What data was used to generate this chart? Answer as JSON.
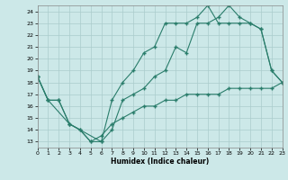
{
  "title": "",
  "xlabel": "Humidex (Indice chaleur)",
  "xlim": [
    0,
    23
  ],
  "ylim": [
    12.5,
    24.5
  ],
  "xticks": [
    0,
    1,
    2,
    3,
    4,
    5,
    6,
    7,
    8,
    9,
    10,
    11,
    12,
    13,
    14,
    15,
    16,
    17,
    18,
    19,
    20,
    21,
    22,
    23
  ],
  "yticks": [
    13,
    14,
    15,
    16,
    17,
    18,
    19,
    20,
    21,
    22,
    23,
    24
  ],
  "line_color": "#2a7d6b",
  "bg_color": "#cce8e8",
  "grid_color": "#aacccc",
  "line1_x": [
    0,
    1,
    2,
    3,
    4,
    5,
    6,
    7,
    8,
    9,
    10,
    11,
    12,
    13,
    14,
    15,
    16,
    17,
    18,
    19,
    20,
    21,
    22,
    23
  ],
  "line1_y": [
    18.5,
    16.5,
    16.5,
    14.5,
    14.0,
    13.0,
    13.0,
    14.0,
    16.5,
    17.0,
    17.5,
    18.5,
    19.0,
    21.0,
    20.5,
    23.0,
    23.0,
    23.5,
    24.5,
    23.5,
    23.0,
    22.5,
    19.0,
    18.0
  ],
  "line2_x": [
    0,
    1,
    3,
    6,
    7,
    8,
    9,
    10,
    11,
    12,
    13,
    14,
    15,
    16,
    17,
    18,
    19,
    20,
    21,
    22,
    23
  ],
  "line2_y": [
    18.5,
    16.5,
    14.5,
    13.0,
    16.5,
    18.0,
    19.0,
    20.5,
    21.0,
    23.0,
    23.0,
    23.0,
    23.5,
    24.5,
    23.0,
    23.0,
    23.0,
    23.0,
    22.5,
    19.0,
    18.0
  ],
  "line3_x": [
    0,
    1,
    2,
    3,
    4,
    5,
    6,
    7,
    8,
    9,
    10,
    11,
    12,
    13,
    14,
    15,
    16,
    17,
    18,
    19,
    20,
    21,
    22,
    23
  ],
  "line3_y": [
    18.5,
    16.5,
    16.5,
    14.5,
    14.0,
    13.0,
    13.5,
    14.5,
    15.0,
    15.5,
    16.0,
    16.0,
    16.5,
    16.5,
    17.0,
    17.0,
    17.0,
    17.0,
    17.5,
    17.5,
    17.5,
    17.5,
    17.5,
    18.0
  ]
}
